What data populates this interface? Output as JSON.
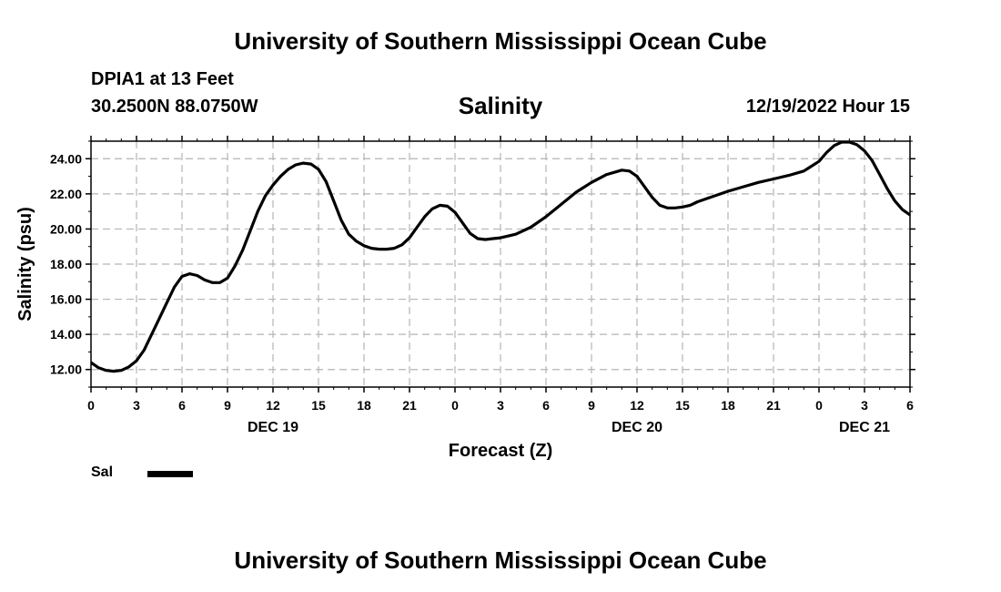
{
  "header": {
    "title_top": "University of Southern Mississippi Ocean Cube",
    "title_bottom": "University of Southern Mississippi Ocean Cube",
    "station": "DPIA1 at 13 Feet",
    "coordinates": "30.2500N  88.0750W",
    "timestamp": "12/19/2022 Hour 15"
  },
  "legend": {
    "label": "Sal"
  },
  "colors": {
    "line": "#000000",
    "grid": "#b4b4b4",
    "frame": "#000000"
  },
  "chart_data": {
    "type": "line",
    "title": "Salinity",
    "xlabel": "Forecast (Z)",
    "ylabel": "Salinity (psu)",
    "xlim": [
      0,
      54
    ],
    "ylim": [
      11.0,
      25.0
    ],
    "yticks": [
      "12.00",
      "14.00",
      "16.00",
      "18.00",
      "20.00",
      "22.00",
      "24.00"
    ],
    "ytick_values": [
      12,
      14,
      16,
      18,
      20,
      22,
      24
    ],
    "xtick_labels": [
      "0",
      "3",
      "6",
      "9",
      "12",
      "15",
      "18",
      "21",
      "0",
      "3",
      "6",
      "9",
      "12",
      "15",
      "18",
      "21",
      "0",
      "3",
      "6"
    ],
    "xtick_values": [
      0,
      3,
      6,
      9,
      12,
      15,
      18,
      21,
      24,
      27,
      30,
      33,
      36,
      39,
      42,
      45,
      48,
      51,
      54
    ],
    "date_labels": [
      {
        "text": "DEC 19",
        "x": 12
      },
      {
        "text": "DEC 20",
        "x": 36
      },
      {
        "text": "DEC 21",
        "x": 51
      }
    ],
    "series": [
      {
        "name": "Sal",
        "x": [
          0,
          0.5,
          1,
          1.5,
          2,
          2.5,
          3,
          3.5,
          4,
          4.5,
          5,
          5.5,
          6,
          6.5,
          7,
          7.5,
          8,
          8.5,
          9,
          9.5,
          10,
          10.5,
          11,
          11.5,
          12,
          12.5,
          13,
          13.5,
          14,
          14.5,
          15,
          15.5,
          16,
          16.5,
          17,
          17.5,
          18,
          18.5,
          19,
          19.5,
          20,
          20.5,
          21,
          21.5,
          22,
          22.5,
          23,
          23.5,
          24,
          24.5,
          25,
          25.5,
          26,
          26.5,
          27,
          28,
          29,
          30,
          31,
          32,
          33,
          34,
          35,
          35.5,
          36,
          36.5,
          37,
          37.5,
          38,
          38.5,
          39,
          39.5,
          40,
          41,
          42,
          43,
          44,
          45,
          46,
          47,
          48,
          48.5,
          49,
          49.5,
          50,
          50.5,
          51,
          51.5,
          52,
          52.5,
          53,
          53.5,
          54
        ],
        "values": [
          12.4,
          12.1,
          11.95,
          11.9,
          11.95,
          12.15,
          12.5,
          13.1,
          14.0,
          14.9,
          15.8,
          16.7,
          17.3,
          17.45,
          17.35,
          17.1,
          16.95,
          16.95,
          17.2,
          17.9,
          18.8,
          19.9,
          21.0,
          21.9,
          22.5,
          23.0,
          23.4,
          23.65,
          23.75,
          23.7,
          23.4,
          22.7,
          21.6,
          20.5,
          19.7,
          19.3,
          19.05,
          18.9,
          18.85,
          18.85,
          18.9,
          19.1,
          19.5,
          20.1,
          20.7,
          21.15,
          21.35,
          21.3,
          20.95,
          20.35,
          19.75,
          19.45,
          19.4,
          19.45,
          19.5,
          19.7,
          20.1,
          20.7,
          21.4,
          22.1,
          22.65,
          23.1,
          23.35,
          23.3,
          23.0,
          22.4,
          21.8,
          21.35,
          21.2,
          21.2,
          21.25,
          21.35,
          21.55,
          21.85,
          22.15,
          22.4,
          22.65,
          22.85,
          23.05,
          23.3,
          23.85,
          24.35,
          24.75,
          24.95,
          24.95,
          24.8,
          24.45,
          23.9,
          23.1,
          22.3,
          21.6,
          21.1,
          20.8
        ]
      }
    ]
  }
}
